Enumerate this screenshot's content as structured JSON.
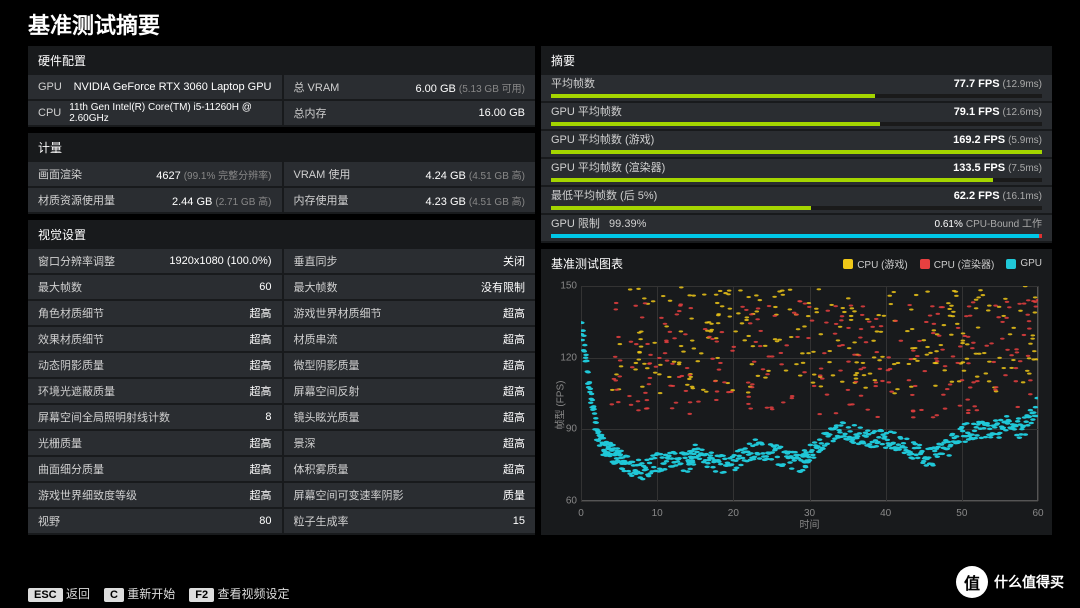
{
  "title": "基准测试摘要",
  "hardware": {
    "title": "硬件配置",
    "rows": [
      {
        "k": "GPU",
        "v": "NVIDIA GeForce RTX 3060 Laptop GPU"
      },
      {
        "k": "总 VRAM",
        "v": "6.00 GB",
        "sub": "(5.13 GB 可用)"
      },
      {
        "k": "CPU",
        "v": "11th Gen Intel(R) Core(TM) i5-11260H @ 2.60GHz",
        "wide": true
      },
      {
        "k": "总内存",
        "v": "16.00 GB"
      }
    ]
  },
  "metrics": {
    "title": "计量",
    "rows": [
      {
        "k": "画面渲染",
        "v": "4627",
        "sub": "(99.1% 完整分辨率)"
      },
      {
        "k": "VRAM 使用",
        "v": "4.24 GB",
        "sub": "(4.51 GB 高)"
      },
      {
        "k": "材质资源使用量",
        "v": "2.44 GB",
        "sub": "(2.71 GB 高)"
      },
      {
        "k": "内存使用量",
        "v": "4.23 GB",
        "sub": "(4.51 GB 高)"
      }
    ]
  },
  "visual": {
    "title": "视觉设置",
    "rows": [
      {
        "k": "窗口分辨率调整",
        "v": "1920x1080 (100.0%)"
      },
      {
        "k": "垂直同步",
        "v": "关闭"
      },
      {
        "k": "最大帧数",
        "v": "60"
      },
      {
        "k": "最大帧数",
        "v": "没有限制"
      },
      {
        "k": "角色材质细节",
        "v": "超高"
      },
      {
        "k": "游戏世界材质细节",
        "v": "超高"
      },
      {
        "k": "效果材质细节",
        "v": "超高"
      },
      {
        "k": "材质串流",
        "v": "超高"
      },
      {
        "k": "动态阴影质量",
        "v": "超高"
      },
      {
        "k": "微型阴影质量",
        "v": "超高"
      },
      {
        "k": "环境光遮蔽质量",
        "v": "超高"
      },
      {
        "k": "屏幕空间反射",
        "v": "超高"
      },
      {
        "k": "屏幕空间全局照明射线计数",
        "v": "8"
      },
      {
        "k": "镜头眩光质量",
        "v": "超高"
      },
      {
        "k": "光栅质量",
        "v": "超高"
      },
      {
        "k": "景深",
        "v": "超高"
      },
      {
        "k": "曲面细分质量",
        "v": "超高"
      },
      {
        "k": "体积雾质量",
        "v": "超高"
      },
      {
        "k": "游戏世界细致度等级",
        "v": "超高"
      },
      {
        "k": "屏幕空间可变速率阴影",
        "v": "质量"
      },
      {
        "k": "视野",
        "v": "80"
      },
      {
        "k": "粒子生成率",
        "v": "15"
      }
    ]
  },
  "summary": {
    "title": "摘要",
    "bars": [
      {
        "k": "平均帧数",
        "v": "77.7 FPS",
        "sub": "(12.9ms)",
        "pct": 66,
        "color": "#a4d500"
      },
      {
        "k": "GPU 平均帧数",
        "v": "79.1 FPS",
        "sub": "(12.6ms)",
        "pct": 67,
        "color": "#a4d500"
      },
      {
        "k": "GPU 平均帧数 (游戏)",
        "v": "169.2 FPS",
        "sub": "(5.9ms)",
        "pct": 100,
        "color": "#a4d500"
      },
      {
        "k": "GPU 平均帧数 (渲染器)",
        "v": "133.5 FPS",
        "sub": "(7.5ms)",
        "pct": 90,
        "color": "#a4d500"
      },
      {
        "k": "最低平均帧数 (后 5%)",
        "v": "62.2 FPS",
        "sub": "(16.1ms)",
        "pct": 53,
        "color": "#a4d500"
      }
    ],
    "gpu_bound": {
      "k": "GPU 限制",
      "lv": "99.39%",
      "rv": "0.61%",
      "rlabel": "CPU-Bound 工作",
      "lpct": 99.4,
      "lcolor": "#00c8e8",
      "rcolor": "#e03030"
    }
  },
  "chart": {
    "title": "基准测试图表",
    "legend": [
      {
        "label": "CPU (游戏)",
        "color": "#f0c818"
      },
      {
        "label": "CPU (渲染器)",
        "color": "#e84040"
      },
      {
        "label": "GPU",
        "color": "#20c8d8"
      }
    ],
    "xlim": [
      0,
      60
    ],
    "ylim": [
      60,
      150
    ],
    "xticks": [
      0,
      10,
      20,
      30,
      40,
      50,
      60
    ],
    "yticks": [
      60,
      90,
      120,
      150
    ],
    "xlabel": "时间",
    "ylabel": "帧型 (FPS)",
    "gpu_line": [
      [
        0,
        135
      ],
      [
        1,
        110
      ],
      [
        2,
        90
      ],
      [
        3,
        82
      ],
      [
        4,
        80
      ],
      [
        5,
        78
      ],
      [
        6,
        75
      ],
      [
        8,
        73
      ],
      [
        10,
        76
      ],
      [
        12,
        78
      ],
      [
        14,
        76
      ],
      [
        15,
        80
      ],
      [
        17,
        77
      ],
      [
        19,
        75
      ],
      [
        21,
        78
      ],
      [
        23,
        82
      ],
      [
        25,
        80
      ],
      [
        27,
        78
      ],
      [
        29,
        76
      ],
      [
        30,
        80
      ],
      [
        32,
        85
      ],
      [
        34,
        90
      ],
      [
        36,
        88
      ],
      [
        38,
        85
      ],
      [
        40,
        86
      ],
      [
        42,
        84
      ],
      [
        44,
        80
      ],
      [
        46,
        78
      ],
      [
        48,
        82
      ],
      [
        50,
        88
      ],
      [
        52,
        90
      ],
      [
        54,
        89
      ],
      [
        56,
        92
      ],
      [
        58,
        90
      ],
      [
        60,
        100
      ]
    ],
    "scatter_density": 260,
    "scatter_xmin": 4,
    "scatter_xmax": 60,
    "scatter_bands": [
      {
        "color": "#f0c818",
        "ymin": 105,
        "ymax": 150
      },
      {
        "color": "#e84040",
        "ymin": 95,
        "ymax": 145
      }
    ]
  },
  "footer": [
    {
      "key": "ESC",
      "label": "返回"
    },
    {
      "key": "C",
      "label": "重新开始"
    },
    {
      "key": "F2",
      "label": "查看视频设定"
    }
  ],
  "watermark": "什么值得买"
}
